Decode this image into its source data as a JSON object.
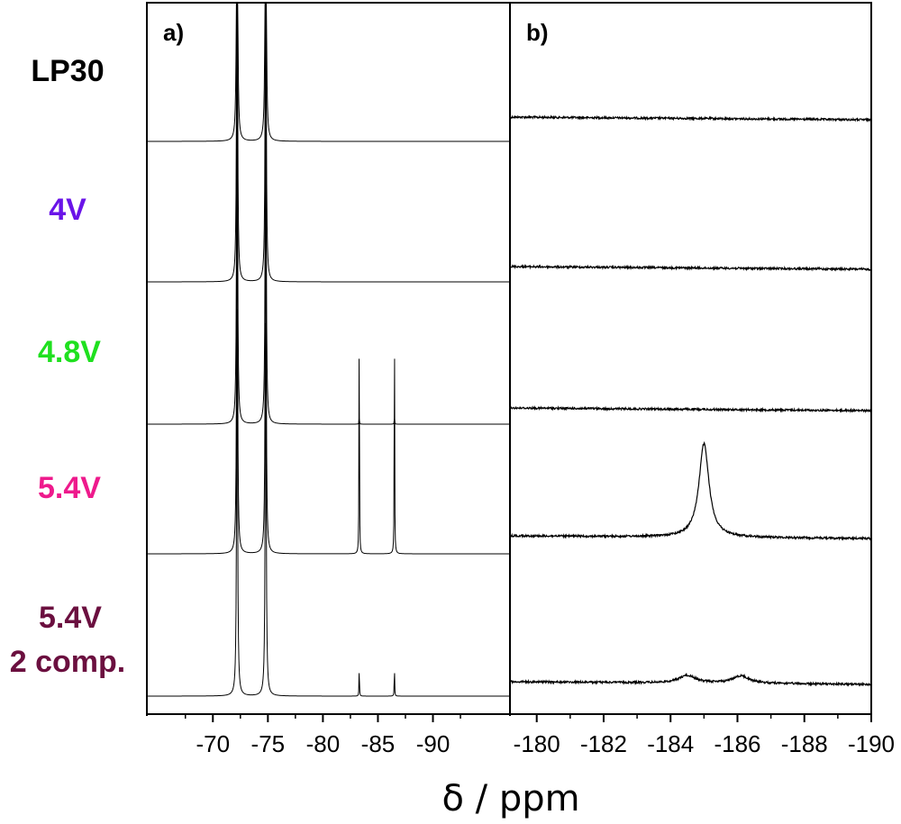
{
  "xlabel": "δ / ppm",
  "colors": {
    "trace": "#000000",
    "LP30": "#000000",
    "4V": "#6a14e8",
    "4.8V": "#1fe01f",
    "5.4V": "#ee1a8c",
    "5.4V 2 comp.": "#6b0f3f"
  },
  "chart_data": [
    {
      "type": "line",
      "panel_label": "a)",
      "xlim": [
        -64,
        -97
      ],
      "xticks": [
        -70,
        -75,
        -80,
        -85,
        -90
      ],
      "xtick_labels": [
        "-70",
        "-75",
        "-80",
        "-85",
        "-90"
      ],
      "series": [
        {
          "name": "LP30",
          "peaks": [
            {
              "x": -72.2,
              "height": 1.0,
              "width": 0.05
            },
            {
              "x": -74.8,
              "height": 1.0,
              "width": 0.05
            }
          ]
        },
        {
          "name": "4V",
          "peaks": [
            {
              "x": -72.2,
              "height": 1.0,
              "width": 0.05
            },
            {
              "x": -74.8,
              "height": 1.0,
              "width": 0.05
            }
          ]
        },
        {
          "name": "4.8V",
          "peaks": [
            {
              "x": -72.2,
              "height": 1.0,
              "width": 0.05
            },
            {
              "x": -74.8,
              "height": 1.0,
              "width": 0.05
            },
            {
              "x": -83.3,
              "height": 0.02,
              "width": 0.02
            },
            {
              "x": -86.5,
              "height": 0.02,
              "width": 0.02
            }
          ]
        },
        {
          "name": "5.4V",
          "peaks": [
            {
              "x": -72.2,
              "height": 1.0,
              "width": 0.05
            },
            {
              "x": -74.8,
              "height": 1.0,
              "width": 0.05
            },
            {
              "x": -83.3,
              "height": 0.68,
              "width": 0.02
            },
            {
              "x": -86.5,
              "height": 0.68,
              "width": 0.02
            }
          ]
        },
        {
          "name": "5.4V 2 comp.",
          "peaks": [
            {
              "x": -72.2,
              "height": 1.0,
              "width": 0.05
            },
            {
              "x": -74.8,
              "height": 1.0,
              "width": 0.05
            },
            {
              "x": -83.3,
              "height": 0.08,
              "width": 0.02
            },
            {
              "x": -86.5,
              "height": 0.08,
              "width": 0.02
            }
          ]
        }
      ]
    },
    {
      "type": "line",
      "panel_label": "b)",
      "xlim": [
        -179.2,
        -190
      ],
      "xticks": [
        -180,
        -182,
        -184,
        -186,
        -188,
        -190
      ],
      "xtick_labels": [
        "-180",
        "-182",
        "-184",
        "-186",
        "-188",
        "-190"
      ],
      "series": [
        {
          "name": "LP30",
          "peaks": []
        },
        {
          "name": "4V",
          "peaks": []
        },
        {
          "name": "4.8V",
          "peaks": []
        },
        {
          "name": "5.4V",
          "peaks": [
            {
              "x": -185.0,
              "height": 1.0,
              "width": 0.18
            }
          ]
        },
        {
          "name": "5.4V 2 comp.",
          "peaks": [
            {
              "x": -184.5,
              "height": 0.08,
              "width": 0.3
            },
            {
              "x": -186.1,
              "height": 0.08,
              "width": 0.3
            }
          ]
        }
      ]
    }
  ],
  "sample_labels": [
    {
      "lines": [
        "LP30"
      ],
      "color": "#000000"
    },
    {
      "lines": [
        "4V"
      ],
      "color": "#6a14e8"
    },
    {
      "lines": [
        "4.8V"
      ],
      "color": "#1fe01f"
    },
    {
      "lines": [
        "5.4V"
      ],
      "color": "#ee1a8c"
    },
    {
      "lines": [
        "5.4V",
        "2 comp."
      ],
      "color": "#6b0f3f"
    }
  ]
}
